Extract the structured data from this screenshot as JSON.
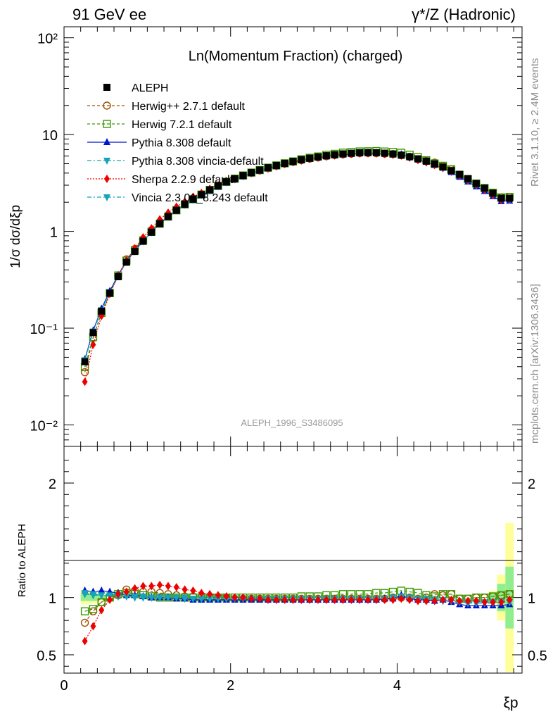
{
  "header": {
    "left": "91 GeV ee",
    "right": "γ*/Z (Hadronic)"
  },
  "side_labels": {
    "rivet": "Rivet 3.1.10, ≥ 2.4M events",
    "mcplots": "mcplots.cern.ch [arXiv:1306.3436]"
  },
  "analysis_id": "ALEPH_1996_S3486095",
  "colors": {
    "data": "#000000",
    "herwigpp": "#a05000",
    "herwig7": "#3a9a00",
    "pythia": "#0015c8",
    "pythia_vincia": "#16a3b8",
    "sherpa": "#ee0000",
    "vincia": "#16a3b8",
    "band_inner": "#90ee90",
    "band_outer": "#ffff99"
  },
  "chart_data": [
    {
      "type": "line",
      "title": "Ln(Momentum Fraction) (charged)",
      "ylabel": "1/σ dσ/dξp",
      "yscale": "log",
      "ylim": [
        0.006,
        130
      ],
      "xlim": [
        0,
        5.5
      ],
      "y_tick_labels": [
        "10⁻²",
        "10⁻¹",
        "1",
        "10",
        "10²"
      ],
      "legend_position": "top-left",
      "x": [
        0.25,
        0.35,
        0.45,
        0.55,
        0.65,
        0.75,
        0.85,
        0.95,
        1.05,
        1.15,
        1.25,
        1.35,
        1.45,
        1.55,
        1.65,
        1.75,
        1.85,
        1.95,
        2.05,
        2.15,
        2.25,
        2.35,
        2.45,
        2.55,
        2.65,
        2.75,
        2.85,
        2.95,
        3.05,
        3.15,
        3.25,
        3.35,
        3.45,
        3.55,
        3.65,
        3.75,
        3.85,
        3.95,
        4.05,
        4.15,
        4.25,
        4.35,
        4.45,
        4.55,
        4.65,
        4.75,
        4.85,
        4.95,
        5.05,
        5.15,
        5.25,
        5.35
      ],
      "series": [
        {
          "name": "ALEPH",
          "color": "#000000",
          "marker": "square-filled",
          "line": "none",
          "values": [
            0.045,
            0.09,
            0.15,
            0.23,
            0.34,
            0.48,
            0.62,
            0.79,
            0.98,
            1.2,
            1.42,
            1.65,
            1.9,
            2.15,
            2.4,
            2.68,
            2.95,
            3.25,
            3.5,
            3.78,
            4.05,
            4.3,
            4.55,
            4.8,
            5.05,
            5.28,
            5.5,
            5.7,
            5.88,
            6.05,
            6.2,
            6.32,
            6.42,
            6.5,
            6.52,
            6.5,
            6.42,
            6.3,
            6.12,
            5.9,
            5.62,
            5.32,
            4.98,
            4.62,
            4.25,
            3.88,
            3.5,
            3.12,
            2.8,
            2.48,
            2.2,
            2.2
          ]
        },
        {
          "name": "Herwig++ 2.7.1 default",
          "color": "#a05000",
          "marker": "circle-open",
          "line": "dashed",
          "ratio": [
            0.78,
            0.88,
            0.96,
            1.0,
            1.02,
            1.07,
            1.06,
            1.05,
            1.05,
            1.04,
            1.03,
            1.02,
            1.01,
            1.01,
            1.0,
            1.0,
            1.0,
            1.0,
            0.99,
            0.99,
            0.99,
            0.99,
            0.99,
            0.99,
            0.99,
            0.99,
            0.99,
            0.99,
            0.99,
            0.99,
            0.99,
            0.99,
            0.99,
            0.99,
            0.99,
            0.99,
            0.99,
            1.0,
            1.0,
            1.0,
            0.99,
            1.0,
            1.03,
            1.02,
            1.03,
            0.99,
            0.99,
            1.0,
            1.0,
            1.01,
            1.02,
            1.03
          ]
        },
        {
          "name": "Herwig 7.2.1 default",
          "color": "#3a9a00",
          "marker": "square-open",
          "line": "dashed",
          "ratio": [
            0.88,
            0.9,
            0.96,
            1.0,
            1.03,
            1.04,
            1.03,
            1.02,
            1.01,
            1.0,
            1.0,
            1.0,
            1.0,
            1.0,
            1.0,
            1.0,
            1.0,
            1.0,
            1.0,
            1.0,
            1.0,
            1.0,
            1.0,
            1.0,
            1.0,
            1.0,
            1.01,
            1.01,
            1.01,
            1.02,
            1.02,
            1.03,
            1.03,
            1.03,
            1.03,
            1.04,
            1.04,
            1.05,
            1.06,
            1.05,
            1.04,
            1.02,
            1.01,
            1.03,
            1.03,
            0.99,
            0.99,
            1.0,
            1.0,
            1.01,
            1.02,
            1.03
          ]
        },
        {
          "name": "Pythia 8.308 default",
          "color": "#0015c8",
          "marker": "triangle-up",
          "line": "solid",
          "ratio": [
            1.06,
            1.05,
            1.06,
            1.05,
            1.04,
            1.02,
            1.02,
            1.01,
            1.0,
            1.0,
            1.0,
            0.99,
            0.99,
            0.98,
            0.98,
            0.98,
            0.98,
            0.98,
            0.98,
            0.98,
            0.98,
            0.98,
            0.98,
            0.98,
            0.98,
            0.98,
            0.98,
            0.98,
            0.98,
            0.98,
            0.98,
            0.98,
            0.98,
            0.98,
            0.98,
            0.98,
            0.99,
            0.99,
            1.02,
            0.99,
            0.98,
            0.98,
            0.97,
            0.98,
            0.96,
            0.94,
            0.93,
            0.93,
            0.93,
            0.93,
            0.93,
            0.94
          ]
        },
        {
          "name": "Pythia 8.308 vincia-default",
          "color": "#16a3b8",
          "marker": "triangle-down",
          "line": "dashdot",
          "ratio": [
            1.04,
            1.03,
            1.02,
            1.02,
            1.02,
            1.01,
            1.01,
            1.01,
            1.0,
            1.0,
            1.0,
            1.0,
            1.0,
            0.99,
            0.99,
            0.99,
            0.99,
            0.99,
            0.99,
            0.99,
            0.99,
            0.99,
            0.99,
            0.99,
            0.99,
            0.99,
            0.99,
            0.99,
            0.99,
            0.99,
            0.99,
            0.99,
            0.99,
            0.99,
            0.99,
            0.99,
            0.99,
            1.0,
            1.01,
            1.0,
            0.99,
            0.99,
            0.98,
            0.98,
            0.97,
            0.96,
            0.95,
            0.95,
            0.95,
            0.95,
            0.96,
            0.96
          ]
        },
        {
          "name": "Sherpa 2.2.9 default",
          "color": "#ee0000",
          "marker": "diamond",
          "line": "dotted",
          "ratio": [
            0.62,
            0.75,
            0.89,
            0.98,
            1.03,
            1.05,
            1.08,
            1.1,
            1.1,
            1.11,
            1.1,
            1.09,
            1.07,
            1.06,
            1.04,
            1.03,
            1.02,
            1.01,
            1.0,
            1.0,
            0.99,
            0.99,
            0.98,
            0.98,
            0.98,
            0.98,
            0.98,
            0.98,
            0.98,
            0.98,
            0.98,
            0.98,
            0.98,
            0.98,
            0.98,
            0.98,
            0.98,
            0.98,
            0.99,
            0.98,
            0.97,
            0.97,
            0.97,
            0.98,
            0.98,
            0.97,
            0.97,
            0.97,
            0.96,
            0.96,
            0.96,
            0.98
          ]
        },
        {
          "name": "Vincia 2.3.01_8.243 default",
          "color": "#16a3b8",
          "marker": "triangle-down",
          "line": "dashdot",
          "ratio": [
            1.03,
            1.02,
            1.02,
            1.01,
            1.01,
            1.01,
            1.0,
            1.0,
            1.0,
            1.0,
            1.0,
            1.0,
            0.99,
            0.99,
            0.99,
            0.99,
            0.99,
            0.99,
            0.99,
            0.99,
            0.99,
            0.99,
            0.99,
            0.99,
            0.99,
            0.99,
            0.99,
            0.99,
            0.99,
            0.99,
            0.99,
            0.99,
            0.99,
            0.99,
            0.99,
            0.99,
            0.99,
            1.0,
            1.01,
            1.0,
            0.99,
            0.99,
            0.98,
            0.97,
            0.97,
            0.96,
            0.96,
            0.96,
            0.96,
            0.96,
            0.96,
            0.96
          ]
        }
      ]
    },
    {
      "type": "line",
      "ylabel": "Ratio to ALEPH",
      "xlabel": "ξp",
      "ylim": [
        0.34,
        2.32
      ],
      "xlim": [
        0,
        5.5
      ],
      "y_tick_labels": [
        "0.5",
        "1",
        "2"
      ],
      "x_tick_labels": [
        "0",
        "2",
        "4"
      ],
      "uncertainty_band": {
        "x": [
          0.25,
          0.35,
          0.45,
          5.15,
          5.25,
          5.35
        ],
        "inner": [
          0.03,
          0.03,
          0.02,
          0.04,
          0.12,
          0.27
        ],
        "outer": [
          0.06,
          0.05,
          0.03,
          0.06,
          0.2,
          0.65
        ]
      }
    }
  ]
}
